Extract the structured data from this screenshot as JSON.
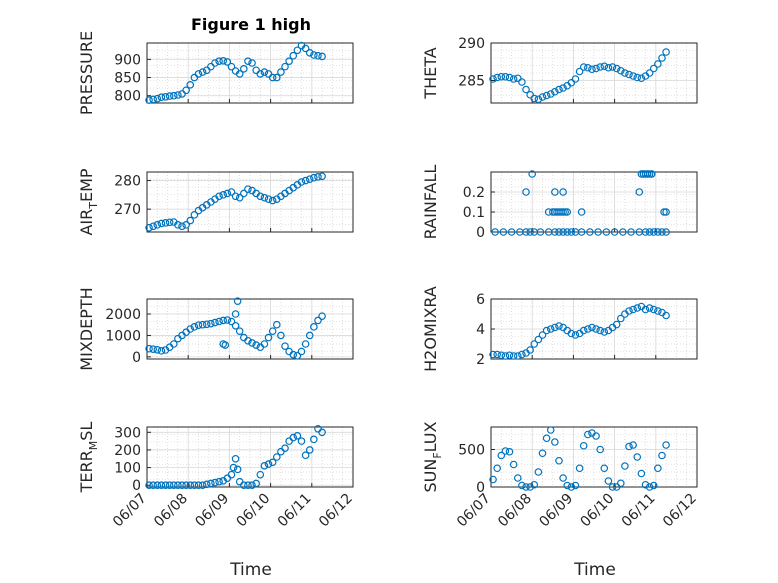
{
  "figure": {
    "title": "Figure 1 high",
    "xlabel": "Time",
    "x_tick_labels": [
      "06/07",
      "06/08",
      "06/09",
      "06/10",
      "06/11",
      "06/12"
    ],
    "marker_color": "#0072bd",
    "grid_color": "#c8c8c8",
    "axis_color": "#262626"
  },
  "chart_data": [
    {
      "type": "scatter",
      "title": "Figure 1 high",
      "ylabel_main": "PRESSURE",
      "ylabel_sub": "",
      "xlim": [
        0,
        5
      ],
      "ylim": [
        780,
        945
      ],
      "yticks": [
        800,
        850,
        900
      ],
      "ytick_labels": [
        "800",
        "850",
        "900"
      ],
      "x": [
        0.05,
        0.15,
        0.25,
        0.35,
        0.45,
        0.55,
        0.65,
        0.75,
        0.85,
        0.95,
        1.05,
        1.15,
        1.25,
        1.35,
        1.45,
        1.55,
        1.65,
        1.75,
        1.85,
        1.95,
        2.05,
        2.15,
        2.25,
        2.35,
        2.45,
        2.55,
        2.65,
        2.75,
        2.85,
        2.95,
        3.05,
        3.15,
        3.25,
        3.35,
        3.45,
        3.55,
        3.65,
        3.75,
        3.85,
        3.95,
        4.05,
        4.15,
        4.25
      ],
      "y": [
        788,
        790,
        792,
        796,
        797,
        799,
        800,
        802,
        805,
        815,
        830,
        850,
        860,
        865,
        870,
        880,
        890,
        895,
        896,
        893,
        880,
        868,
        860,
        874,
        895,
        890,
        870,
        860,
        865,
        860,
        850,
        850,
        865,
        880,
        895,
        910,
        925,
        938,
        930,
        918,
        912,
        910,
        908
      ]
    },
    {
      "type": "scatter",
      "ylabel_main": "THETA",
      "ylabel_sub": "",
      "xlim": [
        0,
        5
      ],
      "ylim": [
        282,
        290
      ],
      "yticks": [
        285,
        290
      ],
      "ytick_labels": [
        "285",
        "290"
      ],
      "x": [
        0.05,
        0.15,
        0.25,
        0.35,
        0.45,
        0.55,
        0.65,
        0.75,
        0.85,
        0.95,
        1.05,
        1.15,
        1.25,
        1.35,
        1.45,
        1.55,
        1.65,
        1.75,
        1.85,
        1.95,
        2.05,
        2.15,
        2.25,
        2.35,
        2.45,
        2.55,
        2.65,
        2.75,
        2.85,
        2.95,
        3.05,
        3.15,
        3.25,
        3.35,
        3.45,
        3.55,
        3.65,
        3.75,
        3.85,
        3.95,
        4.05,
        4.15,
        4.25
      ],
      "y": [
        285.2,
        285.4,
        285.5,
        285.5,
        285.4,
        285.2,
        285.3,
        284.8,
        283.8,
        283.1,
        282.6,
        282.5,
        282.8,
        283.0,
        283.2,
        283.5,
        283.8,
        284.0,
        284.3,
        284.7,
        285.2,
        286.2,
        286.8,
        286.7,
        286.5,
        286.6,
        286.8,
        286.9,
        286.7,
        286.8,
        286.6,
        286.3,
        286.0,
        285.8,
        285.6,
        285.4,
        285.3,
        285.6,
        286.0,
        286.6,
        287.2,
        288.0,
        288.8
      ]
    },
    {
      "type": "scatter",
      "ylabel_main": "AIR",
      "ylabel_sub": "T",
      "ylabel_tail": "EMP",
      "xlim": [
        0,
        5
      ],
      "ylim": [
        262,
        283
      ],
      "yticks": [
        270,
        280
      ],
      "ytick_labels": [
        "270",
        "280"
      ],
      "x": [
        0.05,
        0.15,
        0.25,
        0.35,
        0.45,
        0.55,
        0.65,
        0.75,
        0.85,
        0.95,
        1.05,
        1.15,
        1.25,
        1.35,
        1.45,
        1.55,
        1.65,
        1.75,
        1.85,
        1.95,
        2.05,
        2.15,
        2.25,
        2.35,
        2.45,
        2.55,
        2.65,
        2.75,
        2.85,
        2.95,
        3.05,
        3.15,
        3.25,
        3.35,
        3.45,
        3.55,
        3.65,
        3.75,
        3.85,
        3.95,
        4.05,
        4.15,
        4.25
      ],
      "y": [
        263.5,
        264.0,
        264.5,
        265.0,
        265.2,
        265.4,
        265.5,
        264.5,
        264.0,
        264.5,
        266.0,
        268.0,
        269.5,
        270.5,
        271.5,
        272.5,
        273.5,
        274.5,
        275.0,
        275.5,
        276.0,
        274.5,
        274.0,
        275.5,
        277.0,
        276.5,
        275.5,
        274.5,
        274.0,
        273.5,
        273.0,
        273.5,
        274.5,
        275.5,
        276.5,
        277.5,
        278.5,
        279.5,
        280.0,
        280.5,
        281.0,
        281.3,
        281.5
      ]
    },
    {
      "type": "scatter",
      "ylabel_main": "RAINFALL",
      "ylabel_sub": "",
      "xlim": [
        0,
        5
      ],
      "ylim": [
        0,
        0.3
      ],
      "yticks": [
        0,
        0.1,
        0.2
      ],
      "ytick_labels": [
        "0",
        "0.1",
        "0.2"
      ],
      "x": [
        0.1,
        0.3,
        0.5,
        0.7,
        0.85,
        0.95,
        1.05,
        1.2,
        1.4,
        1.55,
        1.65,
        1.75,
        1.85,
        1.95,
        2.05,
        2.2,
        2.4,
        2.6,
        2.8,
        3.0,
        3.2,
        3.4,
        3.6,
        3.75,
        3.85,
        3.95,
        4.05,
        4.15,
        4.25,
        0.85,
        1.0,
        1.4,
        1.5,
        1.55,
        1.6,
        1.65,
        1.7,
        1.75,
        1.8,
        1.85,
        1.55,
        1.75,
        2.2,
        3.6,
        3.7,
        3.8,
        3.9,
        4.2,
        4.25,
        3.65,
        3.7,
        3.75,
        3.8,
        3.85,
        3.9
      ],
      "y": [
        0,
        0,
        0,
        0,
        0,
        0,
        0,
        0,
        0,
        0,
        0,
        0,
        0,
        0,
        0,
        0,
        0,
        0,
        0,
        0,
        0,
        0,
        0,
        0,
        0,
        0,
        0,
        0,
        0,
        0.2,
        0.29,
        0.1,
        0.1,
        0.1,
        0.1,
        0.1,
        0.1,
        0.1,
        0.1,
        0.1,
        0.2,
        0.2,
        0.1,
        0.2,
        0.29,
        0.29,
        0.29,
        0.1,
        0.1,
        0.29,
        0.29,
        0.29,
        0.29,
        0.29,
        0.29
      ]
    },
    {
      "type": "scatter",
      "ylabel_main": "MIXDEPTH",
      "ylabel_sub": "",
      "xlim": [
        0,
        5
      ],
      "ylim": [
        -100,
        2700
      ],
      "yticks": [
        0,
        1000,
        2000
      ],
      "ytick_labels": [
        "0",
        "1000",
        "2000"
      ],
      "x": [
        0.05,
        0.15,
        0.25,
        0.35,
        0.45,
        0.55,
        0.65,
        0.75,
        0.85,
        0.95,
        1.05,
        1.15,
        1.25,
        1.35,
        1.45,
        1.55,
        1.65,
        1.75,
        1.85,
        1.95,
        2.05,
        2.15,
        2.25,
        2.35,
        2.45,
        2.55,
        2.65,
        2.75,
        2.85,
        2.95,
        3.05,
        3.15,
        3.25,
        3.35,
        3.45,
        3.55,
        3.65,
        3.75,
        3.85,
        3.95,
        4.05,
        4.15,
        4.25,
        1.85,
        1.9,
        2.15,
        2.2
      ],
      "y": [
        380,
        360,
        330,
        280,
        320,
        450,
        600,
        850,
        1000,
        1150,
        1300,
        1400,
        1480,
        1500,
        1520,
        1550,
        1600,
        1650,
        1700,
        1720,
        1650,
        1450,
        1200,
        900,
        750,
        650,
        550,
        450,
        600,
        900,
        1200,
        1500,
        1000,
        500,
        250,
        100,
        50,
        250,
        600,
        1000,
        1400,
        1700,
        1900,
        600,
        550,
        2000,
        2600
      ]
    },
    {
      "type": "scatter",
      "ylabel_main": "H2OMIXRA",
      "ylabel_sub": "",
      "xlim": [
        0,
        5
      ],
      "ylim": [
        2,
        6
      ],
      "yticks": [
        2,
        4,
        6
      ],
      "ytick_labels": [
        "2",
        "4",
        "6"
      ],
      "x": [
        0.05,
        0.15,
        0.25,
        0.35,
        0.45,
        0.55,
        0.65,
        0.75,
        0.85,
        0.95,
        1.05,
        1.15,
        1.25,
        1.35,
        1.45,
        1.55,
        1.65,
        1.75,
        1.85,
        1.95,
        2.05,
        2.15,
        2.25,
        2.35,
        2.45,
        2.55,
        2.65,
        2.75,
        2.85,
        2.95,
        3.05,
        3.15,
        3.25,
        3.35,
        3.45,
        3.55,
        3.65,
        3.75,
        3.85,
        3.95,
        4.05,
        4.15,
        4.25
      ],
      "y": [
        2.3,
        2.3,
        2.25,
        2.2,
        2.25,
        2.2,
        2.2,
        2.3,
        2.4,
        2.6,
        3.0,
        3.3,
        3.6,
        3.9,
        4.0,
        4.1,
        4.2,
        4.1,
        3.9,
        3.7,
        3.6,
        3.7,
        3.9,
        4.0,
        4.1,
        4.0,
        3.9,
        3.8,
        3.9,
        4.1,
        4.3,
        4.7,
        5.0,
        5.2,
        5.3,
        5.4,
        5.5,
        5.3,
        5.4,
        5.3,
        5.2,
        5.1,
        4.9
      ]
    },
    {
      "type": "scatter",
      "ylabel_main": "TERR",
      "ylabel_sub": "M",
      "ylabel_tail": "SL",
      "xlim": [
        0,
        5
      ],
      "ylim": [
        -10,
        330
      ],
      "yticks": [
        0,
        100,
        200,
        300
      ],
      "ytick_labels": [
        "0",
        "100",
        "200",
        "300"
      ],
      "x": [
        0.05,
        0.15,
        0.25,
        0.35,
        0.45,
        0.55,
        0.65,
        0.75,
        0.85,
        0.95,
        1.05,
        1.15,
        1.25,
        1.35,
        1.45,
        1.55,
        1.65,
        1.75,
        1.85,
        1.95,
        2.05,
        2.1,
        2.15,
        2.2,
        2.25,
        2.35,
        2.45,
        2.55,
        2.65,
        2.75,
        2.85,
        2.95,
        3.05,
        3.15,
        3.25,
        3.35,
        3.45,
        3.55,
        3.65,
        3.75,
        3.85,
        3.95,
        4.05,
        4.15,
        4.25
      ],
      "y": [
        0,
        0,
        0,
        0,
        0,
        0,
        0,
        0,
        0,
        0,
        0,
        0,
        0,
        0,
        5,
        10,
        15,
        20,
        25,
        40,
        60,
        100,
        150,
        90,
        20,
        0,
        0,
        0,
        10,
        60,
        110,
        120,
        130,
        160,
        190,
        210,
        250,
        270,
        280,
        250,
        170,
        200,
        260,
        320,
        300
      ]
    },
    {
      "type": "scatter",
      "ylabel_main": "SUN",
      "ylabel_sub": "F",
      "ylabel_tail": "LUX",
      "xlim": [
        0,
        5
      ],
      "ylim": [
        0,
        800
      ],
      "yticks": [
        0,
        500
      ],
      "ytick_labels": [
        "0",
        "500"
      ],
      "x": [
        0.05,
        0.15,
        0.25,
        0.35,
        0.45,
        0.55,
        0.65,
        0.75,
        0.85,
        0.95,
        1.05,
        1.15,
        1.25,
        1.35,
        1.45,
        1.55,
        1.65,
        1.75,
        1.85,
        1.95,
        2.05,
        2.15,
        2.25,
        2.35,
        2.45,
        2.55,
        2.65,
        2.75,
        2.85,
        2.95,
        3.05,
        3.15,
        3.25,
        3.35,
        3.45,
        3.55,
        3.65,
        3.75,
        3.85,
        3.95,
        4.05,
        4.15,
        4.25
      ],
      "y": [
        100,
        250,
        420,
        480,
        470,
        300,
        120,
        20,
        0,
        0,
        30,
        200,
        450,
        650,
        760,
        600,
        350,
        120,
        20,
        0,
        20,
        250,
        550,
        700,
        720,
        680,
        500,
        250,
        80,
        0,
        0,
        50,
        280,
        540,
        560,
        400,
        180,
        30,
        0,
        20,
        250,
        420,
        560
      ]
    }
  ]
}
